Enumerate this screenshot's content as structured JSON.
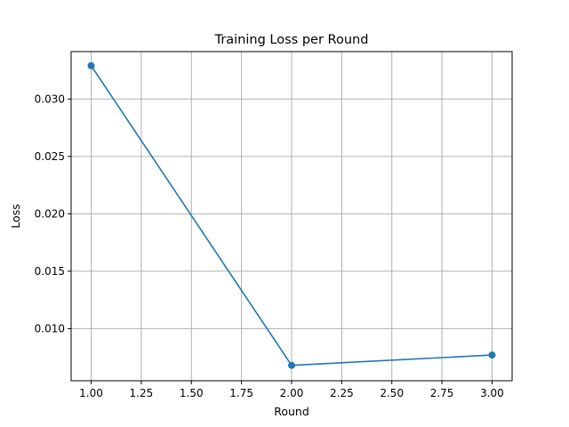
{
  "chart_data": {
    "type": "line",
    "title": "Training Loss per Round",
    "xlabel": "Round",
    "ylabel": "Loss",
    "xlim": [
      0.9,
      3.1
    ],
    "ylim": [
      0.00546,
      0.03413
    ],
    "grid": true,
    "x_ticks": [
      1.0,
      1.25,
      1.5,
      1.75,
      2.0,
      2.25,
      2.5,
      2.75,
      3.0
    ],
    "x_tick_labels": [
      "1.00",
      "1.25",
      "1.50",
      "1.75",
      "2.00",
      "2.25",
      "2.50",
      "2.75",
      "3.00"
    ],
    "y_ticks": [
      0.01,
      0.015,
      0.02,
      0.025,
      0.03
    ],
    "y_tick_labels": [
      "0.010",
      "0.015",
      "0.020",
      "0.025",
      "0.030"
    ],
    "series": [
      {
        "color": "#1f77b4",
        "marker": "circle",
        "x": [
          1,
          2,
          3
        ],
        "y": [
          0.0329,
          0.0068,
          0.0077
        ]
      }
    ]
  }
}
